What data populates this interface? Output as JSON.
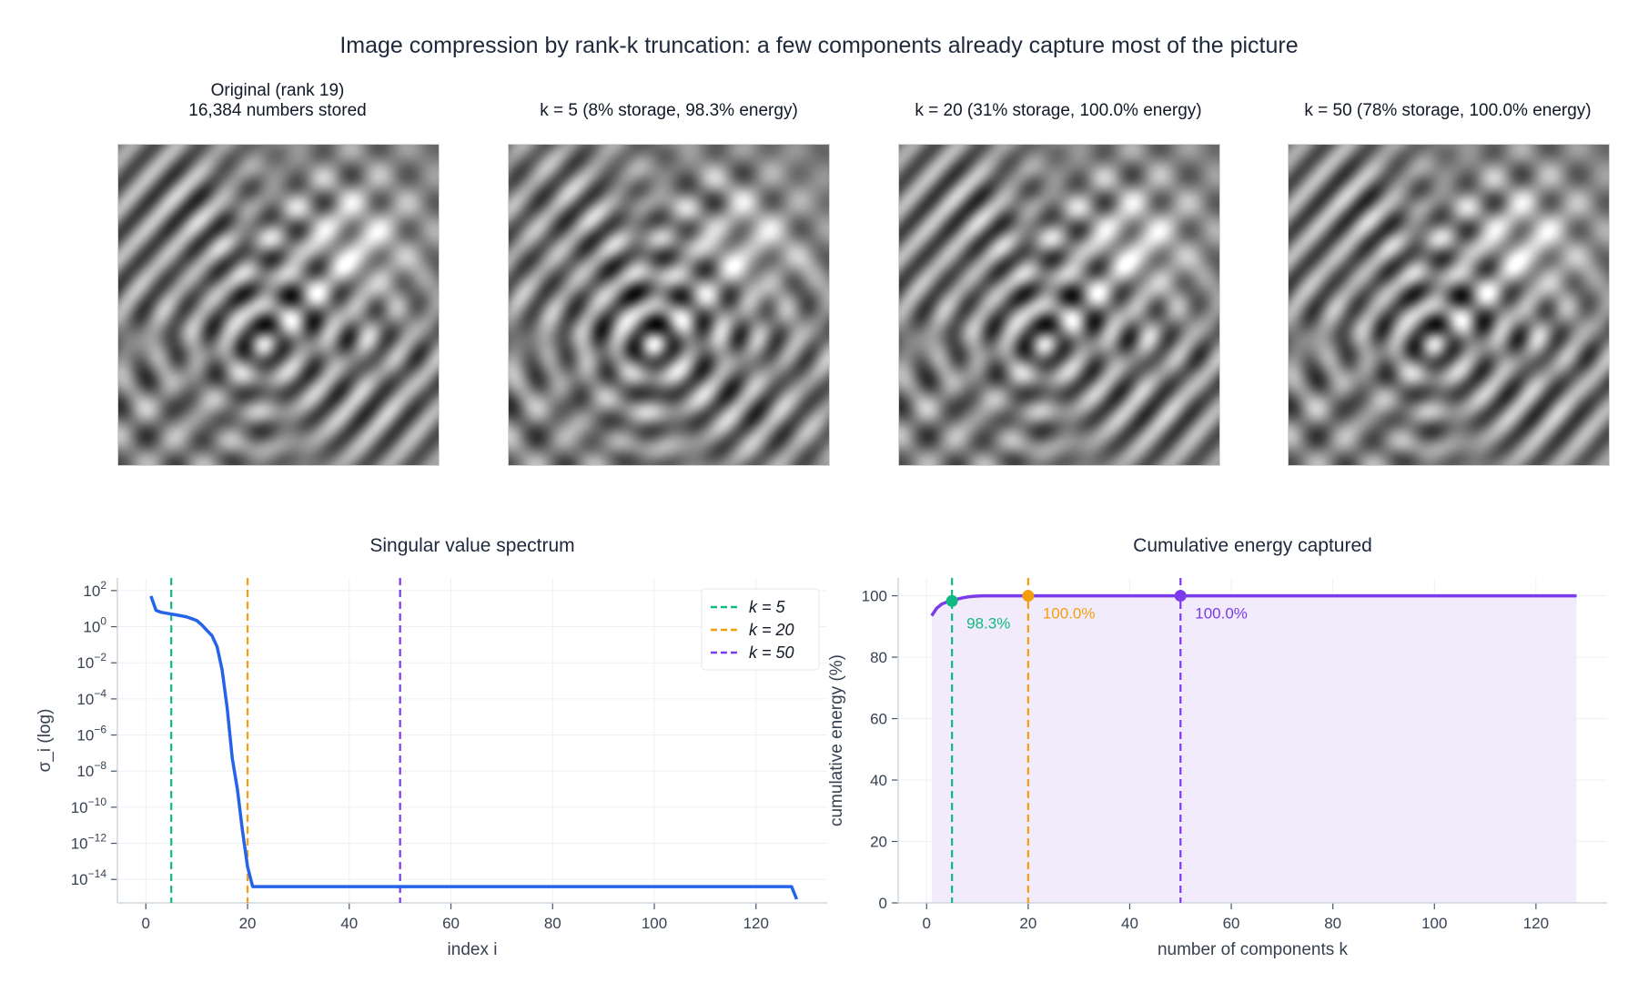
{
  "title": "Image compression by rank-k truncation: a few components already capture most of the picture",
  "panels": [
    {
      "title_line1": "Original (rank 19)",
      "title_line2": "16,384 numbers stored",
      "k": null
    },
    {
      "title": "k = 5  (8% storage, 98.3% energy)",
      "k": 5
    },
    {
      "title": "k = 20  (31% storage, 100.0% energy)",
      "k": 20
    },
    {
      "title": "k = 50  (78% storage, 100.0% energy)",
      "k": 50
    }
  ],
  "colors": {
    "k5": "#10b981",
    "k20": "#f59e0b",
    "k50": "#7c3aed",
    "spectrum": "#2563eb",
    "energy": "#7c3aed",
    "energy_fill": "#efe9fb",
    "grid": "#eef0f5",
    "axis": "#cbd5e1"
  },
  "chart_data": [
    {
      "type": "line",
      "title": "Singular value spectrum",
      "xlabel": "index i",
      "ylabel": "σ_i  (log)",
      "yscale": "log",
      "xlim": [
        -5.6,
        134
      ],
      "ylim_log10": [
        -15.3,
        2.7
      ],
      "xticks": [
        0,
        20,
        40,
        60,
        80,
        100,
        120
      ],
      "yticks": [
        "10^2",
        "10^0",
        "10^-2",
        "10^-4",
        "10^-6",
        "10^-8",
        "10^-10",
        "10^-12",
        "10^-14"
      ],
      "grid": true,
      "legend": {
        "position": "top-right",
        "entries": [
          "k = 5",
          "k = 20",
          "k = 50"
        ]
      },
      "vlines": [
        5,
        20,
        50
      ],
      "series": {
        "index_start": 1,
        "values": [
          50,
          8,
          6.3,
          5.6,
          5.0,
          4.5,
          4.0,
          3.5,
          2.8,
          2.2,
          1.26,
          0.63,
          0.32,
          0.08,
          0.004,
          3e-05,
          5e-08,
          1e-09,
          5e-12,
          5e-14,
          4e-15
        ],
        "plateau": {
          "from": 22,
          "to": 127,
          "value": 4e-15
        },
        "last": {
          "index": 128,
          "value": 8e-16
        }
      }
    },
    {
      "type": "area",
      "title": "Cumulative energy captured",
      "xlabel": "number of components k",
      "ylabel": "cumulative energy (%)",
      "xlim": [
        -5.6,
        134
      ],
      "ylim": [
        0,
        105.8
      ],
      "xticks": [
        0,
        20,
        40,
        60,
        80,
        100,
        120
      ],
      "yticks": [
        0,
        20,
        40,
        60,
        80,
        100
      ],
      "grid": true,
      "series": {
        "k_start": 1,
        "values": [
          93.5,
          96.0,
          97.3,
          98.0,
          98.3,
          98.9,
          99.3,
          99.6,
          99.8,
          99.9,
          100.0
        ],
        "plateau": {
          "from": 12,
          "to": 128,
          "value": 100.0
        }
      },
      "markers": [
        {
          "k": 5,
          "value": 98.3,
          "label": "98.3%"
        },
        {
          "k": 20,
          "value": 100.0,
          "label": "100.0%"
        },
        {
          "k": 50,
          "value": 100.0,
          "label": "100.0%"
        }
      ]
    }
  ]
}
